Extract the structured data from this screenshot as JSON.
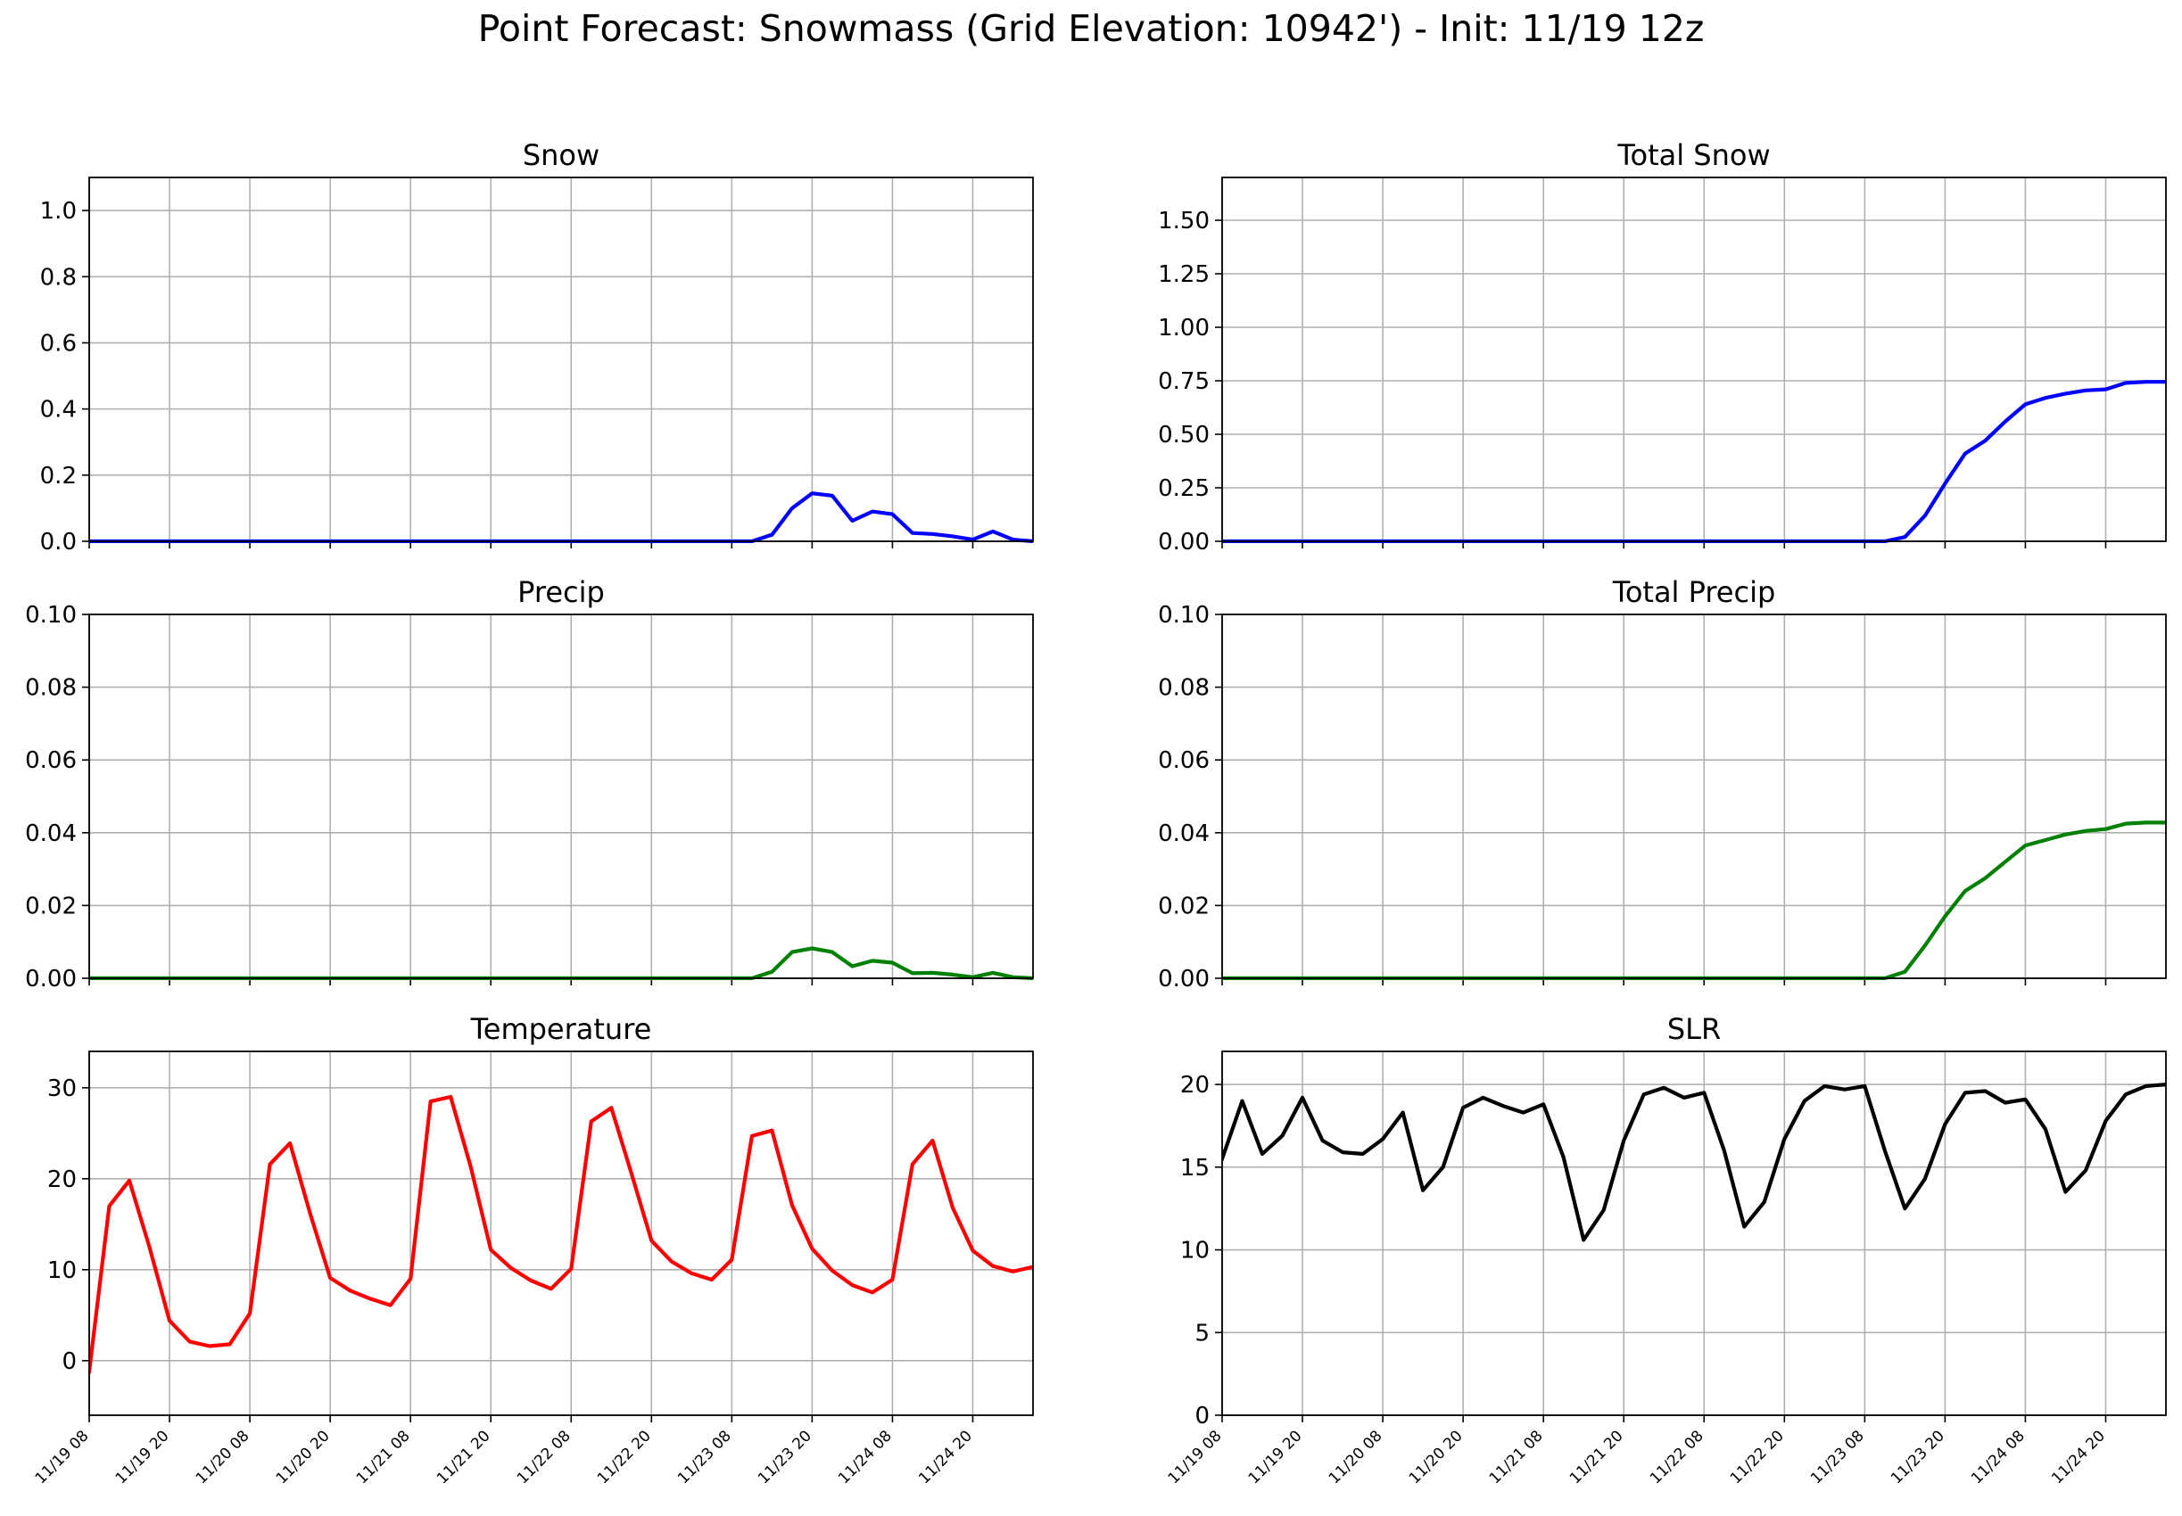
{
  "suptitle": "Point Forecast: Snowmass (Grid Elevation: 10942') - Init: 11/19 12z",
  "chart_data": [
    {
      "type": "line",
      "title": "Snow",
      "color": "#0000ff",
      "yticks": [
        0.0,
        0.2,
        0.4,
        0.6,
        0.8,
        1.0
      ],
      "ytick_format": 1,
      "ylim": [
        0,
        1.1
      ],
      "xtick_labels_shown": false,
      "series": [
        {
          "values": [
            0,
            0,
            0,
            0,
            0,
            0,
            0,
            0,
            0,
            0,
            0,
            0,
            0,
            0,
            0,
            0,
            0,
            0,
            0,
            0,
            0,
            0,
            0,
            0,
            0,
            0,
            0,
            0,
            0,
            0,
            0,
            0,
            0,
            0,
            0.02,
            0.1,
            0.145,
            0.138,
            0.062,
            0.09,
            0.082,
            0.025,
            0.022,
            0.015,
            0.005,
            0.03,
            0.005,
            0
          ]
        }
      ]
    },
    {
      "type": "line",
      "title": "Total Snow",
      "color": "#0000ff",
      "yticks": [
        0.0,
        0.25,
        0.5,
        0.75,
        1.0,
        1.25,
        1.5
      ],
      "ytick_format": 2,
      "ylim": [
        0,
        1.7
      ],
      "xtick_labels_shown": false,
      "series": [
        {
          "values": [
            0,
            0,
            0,
            0,
            0,
            0,
            0,
            0,
            0,
            0,
            0,
            0,
            0,
            0,
            0,
            0,
            0,
            0,
            0,
            0,
            0,
            0,
            0,
            0,
            0,
            0,
            0,
            0,
            0,
            0,
            0,
            0,
            0,
            0,
            0.02,
            0.12,
            0.27,
            0.41,
            0.47,
            0.56,
            0.64,
            0.67,
            0.69,
            0.705,
            0.71,
            0.74,
            0.745,
            0.745
          ]
        }
      ]
    },
    {
      "type": "line",
      "title": "Precip",
      "color": "#008000",
      "yticks": [
        0.0,
        0.02,
        0.04,
        0.06,
        0.08,
        0.1
      ],
      "ytick_format": 2,
      "ylim": [
        0,
        0.1
      ],
      "xtick_labels_shown": false,
      "series": [
        {
          "values": [
            0,
            0,
            0,
            0,
            0,
            0,
            0,
            0,
            0,
            0,
            0,
            0,
            0,
            0,
            0,
            0,
            0,
            0,
            0,
            0,
            0,
            0,
            0,
            0,
            0,
            0,
            0,
            0,
            0,
            0,
            0,
            0,
            0,
            0,
            0.0018,
            0.0072,
            0.0082,
            0.0072,
            0.0033,
            0.0048,
            0.0043,
            0.0014,
            0.0015,
            0.001,
            0.0003,
            0.0015,
            0.0003,
            0
          ]
        }
      ]
    },
    {
      "type": "line",
      "title": "Total Precip",
      "color": "#008000",
      "yticks": [
        0.0,
        0.02,
        0.04,
        0.06,
        0.08,
        0.1
      ],
      "ytick_format": 2,
      "ylim": [
        0,
        0.1
      ],
      "xtick_labels_shown": false,
      "series": [
        {
          "values": [
            0,
            0,
            0,
            0,
            0,
            0,
            0,
            0,
            0,
            0,
            0,
            0,
            0,
            0,
            0,
            0,
            0,
            0,
            0,
            0,
            0,
            0,
            0,
            0,
            0,
            0,
            0,
            0,
            0,
            0,
            0,
            0,
            0,
            0,
            0.0018,
            0.009,
            0.017,
            0.024,
            0.0275,
            0.032,
            0.0365,
            0.038,
            0.0395,
            0.0405,
            0.041,
            0.0425,
            0.0428,
            0.0428
          ]
        }
      ]
    },
    {
      "type": "line",
      "title": "Temperature",
      "color": "#ff0000",
      "yticks": [
        0,
        10,
        20,
        30
      ],
      "ytick_format": 0,
      "ylim": [
        -6,
        34
      ],
      "xtick_labels_shown": true,
      "series": [
        {
          "values": [
            -1.2,
            17,
            19.8,
            12.5,
            4.4,
            2.1,
            1.6,
            1.8,
            5.2,
            21.6,
            23.9,
            16.2,
            9.1,
            7.7,
            6.8,
            6.1,
            9.0,
            28.5,
            29.0,
            21.3,
            12.2,
            10.2,
            8.8,
            7.9,
            10.1,
            26.3,
            27.8,
            20.6,
            13.2,
            10.9,
            9.6,
            8.9,
            11.1,
            24.7,
            25.3,
            17.1,
            12.3,
            9.9,
            8.3,
            7.5,
            8.9,
            21.6,
            24.2,
            16.8,
            12.1,
            10.4,
            9.8,
            10.3
          ]
        }
      ]
    },
    {
      "type": "line",
      "title": "SLR",
      "color": "#000000",
      "yticks": [
        0,
        5,
        10,
        15,
        20
      ],
      "ytick_format": 0,
      "ylim": [
        0,
        22
      ],
      "xtick_labels_shown": true,
      "series": [
        {
          "values": [
            15.5,
            19.0,
            15.8,
            16.9,
            19.2,
            16.6,
            15.9,
            15.8,
            16.7,
            18.3,
            13.6,
            15.0,
            18.6,
            19.2,
            18.7,
            18.3,
            18.8,
            15.6,
            10.6,
            12.4,
            16.6,
            19.4,
            19.8,
            19.2,
            19.5,
            16.0,
            11.4,
            12.9,
            16.7,
            19.0,
            19.9,
            19.7,
            19.9,
            16.0,
            12.5,
            14.3,
            17.6,
            19.5,
            19.6,
            18.9,
            19.1,
            17.3,
            13.5,
            14.8,
            17.8,
            19.4,
            19.9,
            20.0
          ]
        }
      ]
    }
  ],
  "x_axis": {
    "x_start_hour": 0,
    "x_end_hour": 141,
    "step_hours": 3,
    "tick_labels": [
      "11/19 08",
      "11/19 20",
      "11/20 08",
      "11/20 20",
      "11/21 08",
      "11/21 20",
      "11/22 08",
      "11/22 20",
      "11/23 08",
      "11/23 20",
      "11/24 08",
      "11/24 20"
    ],
    "tick_interval_hours": 12
  },
  "grid": true
}
